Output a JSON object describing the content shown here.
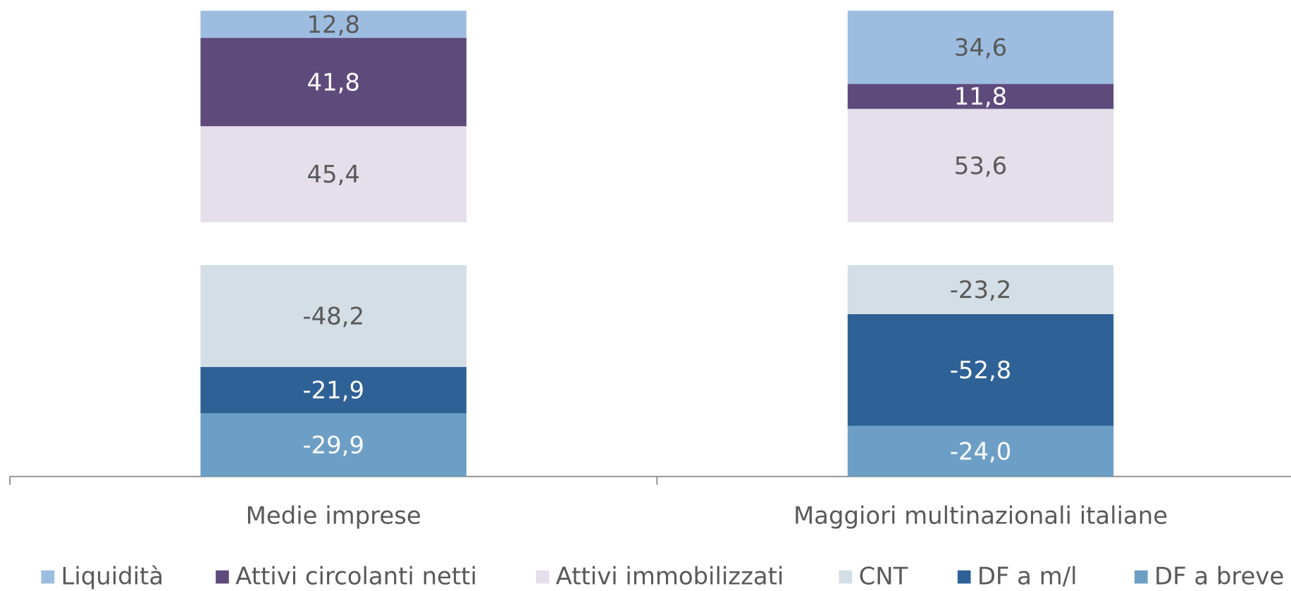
{
  "chart_data": {
    "type": "bar",
    "stacked": true,
    "categories": [
      "Medie imprese",
      "Maggiori multinazionali italiane"
    ],
    "series": [
      {
        "name": "Liquidità",
        "color": "#9dbde0",
        "values": [
          12.8,
          34.6
        ],
        "value_labels": [
          "12,8",
          "34,6"
        ]
      },
      {
        "name": "Attivi circolanti netti",
        "color": "#5e4a7b",
        "values": [
          41.8,
          11.8
        ],
        "value_labels": [
          "41,8",
          "11,8"
        ]
      },
      {
        "name": "Attivi immobilizzati",
        "color": "#e5dfec",
        "values": [
          45.4,
          53.6
        ],
        "value_labels": [
          "45,4",
          "53,6"
        ]
      },
      {
        "name": "CNT",
        "color": "#d3dee6",
        "values": [
          -48.2,
          -23.2
        ],
        "value_labels": [
          "-48,2",
          "-23,2"
        ]
      },
      {
        "name": "DF a m/l",
        "color": "#2e6196",
        "values": [
          -21.9,
          -52.8
        ],
        "value_labels": [
          "-21,9",
          "-52,8"
        ]
      },
      {
        "name": "DF a breve",
        "color": "#6d9fc6",
        "values": [
          -29.9,
          -24.0
        ],
        "value_labels": [
          "-29,9",
          "-24,0"
        ]
      }
    ],
    "legend": "bottom"
  }
}
